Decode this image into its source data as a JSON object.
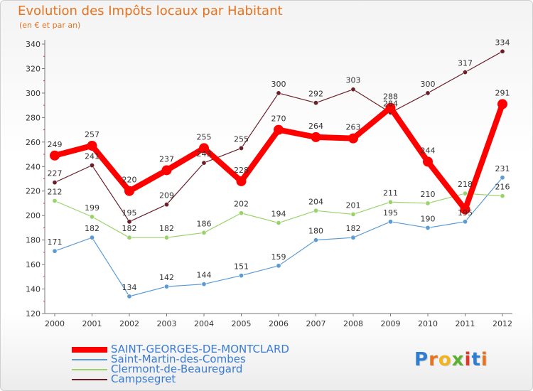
{
  "title": "Evolution des Impôts locaux par Habitant",
  "subtitle": "(en € et par an)",
  "logo": {
    "letters": [
      "P",
      "r",
      "o",
      "x",
      "i",
      "t",
      "i"
    ],
    "colors": [
      "#2f7dd1",
      "#e8721e",
      "#f2b41c",
      "#5bb030",
      "#d93a2b",
      "#2f7dd1",
      "#e8721e"
    ]
  },
  "chart_data": {
    "type": "line",
    "x": [
      "2000",
      "2001",
      "2002",
      "2003",
      "2004",
      "2005",
      "2006",
      "2007",
      "2008",
      "2009",
      "2010",
      "2011",
      "2012"
    ],
    "ylim": [
      120,
      340
    ],
    "yticks": [
      120,
      140,
      160,
      180,
      200,
      220,
      240,
      260,
      280,
      300,
      320,
      340
    ],
    "grid": false,
    "legend_position": "bottom-left",
    "series": [
      {
        "name": "SAINT-GEORGES-DE-MONTCLARD",
        "color": "#ff0000",
        "width": 8,
        "marker": 7,
        "values": [
          249,
          257,
          220,
          237,
          255,
          228,
          270,
          264,
          263,
          288,
          244,
          205,
          291
        ],
        "labels": [
          "249",
          "257",
          "220",
          "237",
          "255",
          "228",
          "270",
          "264",
          "263",
          "288",
          "244",
          "",
          "291"
        ]
      },
      {
        "name": "Saint-Martin-des-Combes",
        "color": "#5b9bd5",
        "width": 1.2,
        "marker": 3.2,
        "values": [
          171,
          182,
          134,
          142,
          144,
          151,
          159,
          180,
          182,
          195,
          190,
          195,
          231
        ],
        "labels": [
          "171",
          "182",
          "134",
          "142",
          "144",
          "151",
          "159",
          "180",
          "182",
          "195",
          "190",
          "195",
          "231"
        ]
      },
      {
        "name": "Clermont-de-Beauregard",
        "color": "#9bd36b",
        "width": 1.2,
        "marker": 3.2,
        "values": [
          212,
          199,
          182,
          182,
          186,
          202,
          194,
          204,
          201,
          211,
          210,
          218,
          216
        ],
        "labels": [
          "212",
          "199",
          "182",
          "182",
          "186",
          "202",
          "194",
          "204",
          "201",
          "211",
          "210",
          "218",
          "216"
        ]
      },
      {
        "name": "Campsegret",
        "color": "#6b1f2a",
        "width": 1.2,
        "marker": 3.2,
        "values": [
          227,
          241,
          195,
          209,
          243,
          255,
          300,
          292,
          303,
          284,
          300,
          317,
          334
        ],
        "labels": [
          "227",
          "241",
          "195",
          "209",
          "243",
          "255",
          "300",
          "292",
          "303",
          "284",
          "300",
          "317",
          "334"
        ]
      }
    ]
  }
}
